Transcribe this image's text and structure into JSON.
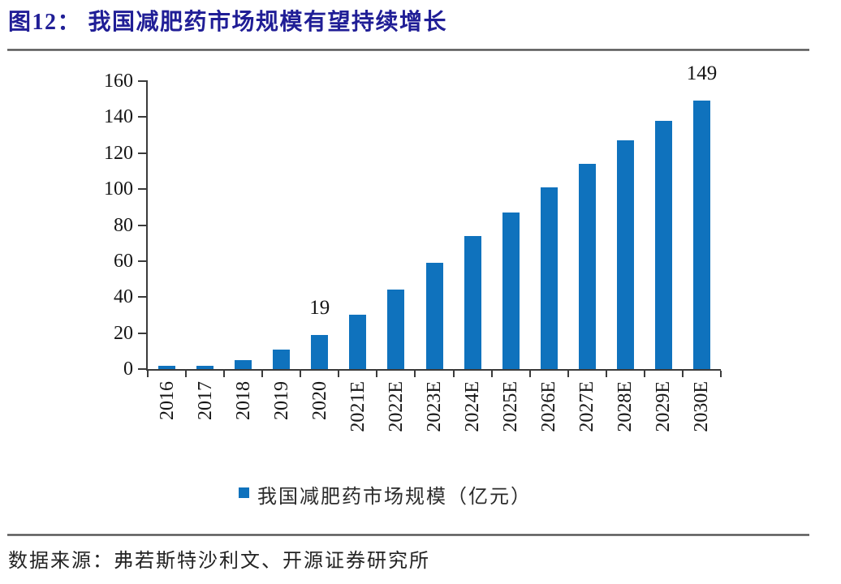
{
  "figure": {
    "title": "图12： 我国减肥药市场规模有望持续增长",
    "source": "数据来源：弗若斯特沙利文、开源证券研究所"
  },
  "chart_data": {
    "type": "bar",
    "title": "图12： 我国减肥药市场规模有望持续增长",
    "categories": [
      "2016",
      "2017",
      "2018",
      "2019",
      "2020",
      "2021E",
      "2022E",
      "2023E",
      "2024E",
      "2025E",
      "2026E",
      "2027E",
      "2028E",
      "2029E",
      "2030E"
    ],
    "values": [
      2,
      2,
      5,
      11,
      19,
      30,
      44,
      59,
      74,
      87,
      101,
      114,
      127,
      138,
      149
    ],
    "annotated_indices": [
      4,
      14
    ],
    "annotated_labels": [
      "19",
      "149"
    ],
    "xlabel": "",
    "ylabel": "",
    "ylim": [
      0,
      160
    ],
    "ytick_step": 20,
    "yticks": [
      0,
      20,
      40,
      60,
      80,
      100,
      120,
      140,
      160
    ],
    "grid": false,
    "bar_color": "#0F72BD",
    "legend": {
      "label": "我国减肥药市场规模（亿元）",
      "position": "bottom"
    }
  }
}
